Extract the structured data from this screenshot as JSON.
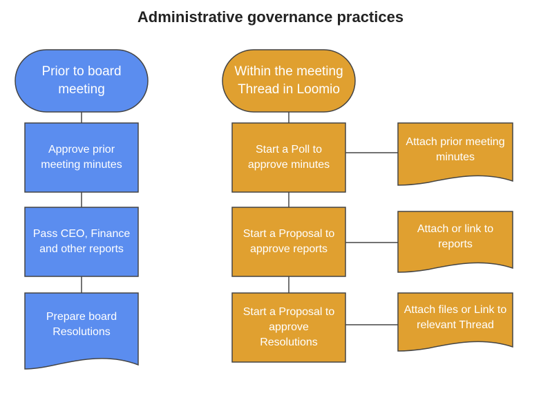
{
  "title": "Administrative governance practices",
  "colors": {
    "blue_fill": "#5B8DEF",
    "orange_fill": "#E0A030",
    "stroke": "#444444",
    "connector": "#444444"
  },
  "left_column": {
    "header": "Prior to board meeting",
    "steps": [
      "Approve prior meeting minutes",
      "Pass CEO, Finance and other reports",
      "Prepare board Resolutions"
    ]
  },
  "middle_column": {
    "header": "Within the meeting Thread in Loomio",
    "steps": [
      "Start a Poll to approve minutes",
      "Start a Proposal to approve reports",
      "Start a Proposal to approve Resolutions"
    ]
  },
  "right_column": {
    "docs": [
      "Attach prior meeting minutes",
      "Attach or link to reports",
      "Attach files or Link to relevant Thread"
    ]
  }
}
